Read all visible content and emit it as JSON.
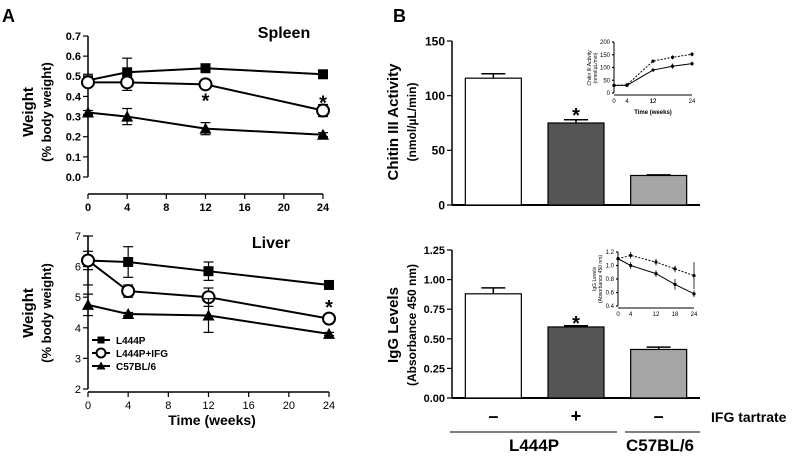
{
  "panels": {
    "A": {
      "label": "A"
    },
    "B": {
      "label": "B"
    }
  },
  "shared": {
    "series_names": [
      "L444P",
      "L444P+IFG",
      "C57BL/6"
    ],
    "ifg_row_label": "IFG tartrate",
    "ifg_signs": [
      "–",
      "+",
      "–"
    ],
    "group_labels": [
      "L444P",
      "C57BL/6"
    ]
  },
  "chart_data": [
    {
      "id": "spleen",
      "type": "line",
      "title": "Spleen",
      "xlabel": "",
      "ylabel": "Weight",
      "ylabel2": "(% body weight)",
      "x": [
        0,
        4,
        12,
        24
      ],
      "xticks": [
        "0",
        "4",
        "8",
        "12",
        "16",
        "20",
        "24"
      ],
      "xtick_values": [
        0,
        4,
        8,
        12,
        16,
        20,
        24
      ],
      "yticks": [
        "0.0",
        "0.1",
        "0.2",
        "0.3",
        "0.4",
        "0.5",
        "0.6",
        "0.7"
      ],
      "ytick_values": [
        0,
        0.1,
        0.2,
        0.3,
        0.4,
        0.5,
        0.6,
        0.7
      ],
      "xlim": [
        0,
        24
      ],
      "ylim": [
        0,
        0.7
      ],
      "series": [
        {
          "name": "L444P",
          "marker": "square",
          "values": [
            0.48,
            0.52,
            0.54,
            0.51
          ],
          "errors": [
            0.03,
            0.07,
            0.01,
            0.02
          ]
        },
        {
          "name": "L444P+IFG",
          "marker": "circle",
          "values": [
            0.47,
            0.47,
            0.46,
            0.33
          ],
          "errors": [
            0.02,
            0.04,
            0.02,
            0.03
          ]
        },
        {
          "name": "C57BL/6",
          "marker": "triangle",
          "values": [
            0.32,
            0.3,
            0.24,
            0.21
          ],
          "errors": [
            0.01,
            0.04,
            0.03,
            0.01
          ]
        }
      ],
      "annotations": [
        {
          "text": "*",
          "x": 12,
          "y": 0.39
        },
        {
          "text": "*",
          "x": 24,
          "y": 0.38
        }
      ]
    },
    {
      "id": "liver",
      "type": "line",
      "title": "Liver",
      "xlabel": "Time (weeks)",
      "ylabel": "Weight",
      "ylabel2": "(% body weight)",
      "x": [
        0,
        4,
        12,
        24
      ],
      "xticks": [
        "0",
        "4",
        "8",
        "12",
        "16",
        "20",
        "24"
      ],
      "xtick_values": [
        0,
        4,
        8,
        12,
        16,
        20,
        24
      ],
      "yticks": [
        "2",
        "3",
        "4",
        "5",
        "6",
        "7"
      ],
      "ytick_values": [
        2,
        3,
        4,
        5,
        6,
        7
      ],
      "xlim": [
        0,
        24
      ],
      "ylim": [
        2,
        7
      ],
      "series": [
        {
          "name": "L444P",
          "marker": "square",
          "values": [
            6.2,
            6.15,
            5.85,
            5.4
          ],
          "errors": [
            0.8,
            0.5,
            0.3,
            0.05
          ]
        },
        {
          "name": "L444P+IFG",
          "marker": "circle",
          "values": [
            6.2,
            5.2,
            5.0,
            4.3
          ],
          "errors": [
            0.3,
            0.2,
            0.3,
            0.1
          ]
        },
        {
          "name": "C57BL/6",
          "marker": "triangle",
          "values": [
            4.75,
            4.45,
            4.4,
            3.8
          ],
          "errors": [
            0.35,
            0.05,
            0.55,
            0.05
          ]
        }
      ],
      "annotations": [
        {
          "text": "*",
          "x": 24,
          "y": 4.75
        }
      ]
    },
    {
      "id": "chitin",
      "type": "bar",
      "title": "",
      "ylabel": "Chitin III Activity",
      "ylabel2": "(nmol/µL/min)",
      "categories": [
        "L444P",
        "L444P+IFG",
        "C57BL/6"
      ],
      "values": [
        116,
        75,
        27
      ],
      "errors": [
        4,
        3,
        0.5
      ],
      "colors": [
        "#ffffff",
        "#555555",
        "#a6a6a6"
      ],
      "yticks": [
        "0",
        "50",
        "100",
        "150"
      ],
      "ytick_values": [
        0,
        50,
        100,
        150
      ],
      "ylim": [
        0,
        150
      ],
      "annotations": [
        {
          "text": "*",
          "category": 1,
          "y": 84
        }
      ]
    },
    {
      "id": "chitin_inset",
      "type": "line",
      "ylabel": "Chitin III Activity",
      "ylabel2": "(nmol/µL/min)",
      "xlabel": "Time (weeks)",
      "x": [
        0,
        4,
        12,
        18,
        24
      ],
      "xticks": [
        "0",
        "4",
        "12",
        "18",
        "24"
      ],
      "xtick_values": [
        0,
        4,
        12,
        18,
        24
      ],
      "yticks": [
        "0",
        "50",
        "100",
        "150",
        "200"
      ],
      "ytick_values": [
        0,
        50,
        100,
        150,
        200
      ],
      "xlim": [
        0,
        24
      ],
      "ylim": [
        0,
        200
      ],
      "series": [
        {
          "name": "L444P",
          "style": "dashed",
          "values": [
            30,
            32,
            125,
            140,
            152
          ],
          "errors": [
            0,
            0,
            5,
            8,
            8
          ]
        },
        {
          "name": "L444P+IFG",
          "style": "solid",
          "values": [
            30,
            30,
            90,
            105,
            115
          ],
          "errors": [
            0,
            0,
            5,
            10,
            8
          ]
        }
      ]
    },
    {
      "id": "igg",
      "type": "bar",
      "title": "",
      "ylabel": "IgG Levels",
      "ylabel2": "(Absorbance 450 nm)",
      "categories": [
        "L444P",
        "L444P+IFG",
        "C57BL/6"
      ],
      "values": [
        0.88,
        0.6,
        0.41
      ],
      "errors": [
        0.05,
        0.01,
        0.02
      ],
      "colors": [
        "#ffffff",
        "#555555",
        "#a6a6a6"
      ],
      "yticks": [
        "0.00",
        "0.25",
        "0.50",
        "0.75",
        "1.00",
        "1.25"
      ],
      "ytick_values": [
        0,
        0.25,
        0.5,
        0.75,
        1.0,
        1.25
      ],
      "ylim": [
        0,
        1.25
      ],
      "annotations": [
        {
          "text": "*",
          "category": 1,
          "y": 0.65
        }
      ]
    },
    {
      "id": "igg_inset",
      "type": "line",
      "ylabel": "IgG Levels",
      "ylabel2": "(Absorbance 450 nm)",
      "x": [
        0,
        4,
        12,
        18,
        24
      ],
      "xticks": [
        "0",
        "4",
        "12",
        "18",
        "24"
      ],
      "xtick_values": [
        0,
        4,
        12,
        18,
        24
      ],
      "yticks": [
        "0.4",
        "0.6",
        "0.8",
        "1.0",
        "1.2"
      ],
      "ytick_values": [
        0.4,
        0.6,
        0.8,
        1.0,
        1.2
      ],
      "xlim": [
        0,
        24
      ],
      "ylim": [
        0.4,
        1.2
      ],
      "series": [
        {
          "name": "L444P",
          "style": "dashed",
          "values": [
            1.1,
            1.15,
            1.05,
            0.95,
            0.85
          ],
          "errors": [
            0.05,
            0.05,
            0.05,
            0.05,
            0.2
          ]
        },
        {
          "name": "L444P+IFG",
          "style": "solid",
          "values": [
            1.1,
            1.0,
            0.88,
            0.72,
            0.58
          ],
          "errors": [
            0.05,
            0.05,
            0.05,
            0.08,
            0.05
          ]
        }
      ]
    }
  ]
}
